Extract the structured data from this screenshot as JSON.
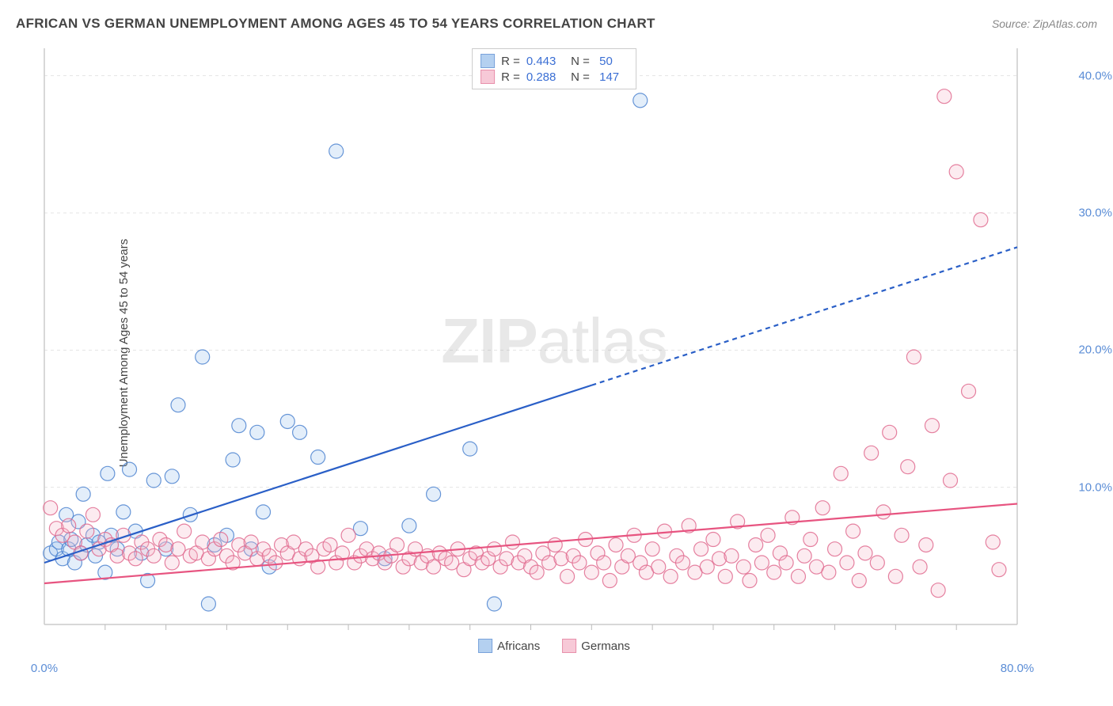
{
  "title": "AFRICAN VS GERMAN UNEMPLOYMENT AMONG AGES 45 TO 54 YEARS CORRELATION CHART",
  "source": "Source: ZipAtlas.com",
  "ylabel": "Unemployment Among Ages 45 to 54 years",
  "watermark": {
    "bold": "ZIP",
    "light": "atlas"
  },
  "chart": {
    "type": "scatter",
    "background_color": "#ffffff",
    "grid_color": "#e4e4e4",
    "grid_dash": "4,4",
    "axis_color": "#cccccc",
    "tick_color": "#bbbbbb",
    "xlim": [
      0,
      80
    ],
    "ylim": [
      0,
      42
    ],
    "x_ticks_minor": [
      5,
      10,
      15,
      20,
      25,
      30,
      35,
      40,
      45,
      50,
      55,
      60,
      65,
      70,
      75
    ],
    "y_gridlines": [
      10,
      20,
      30,
      40
    ],
    "x_labels": [
      {
        "value": 0,
        "text": "0.0%"
      },
      {
        "value": 80,
        "text": "80.0%"
      }
    ],
    "y_labels": [
      {
        "value": 10,
        "text": "10.0%"
      },
      {
        "value": 20,
        "text": "20.0%"
      },
      {
        "value": 30,
        "text": "30.0%"
      },
      {
        "value": 40,
        "text": "40.0%"
      }
    ],
    "marker_radius": 9,
    "marker_stroke_width": 1.2,
    "marker_fill_opacity": 0.28,
    "trend_line_width": 2.2,
    "series": [
      {
        "name": "Africans",
        "color_fill": "#9cc1ec",
        "color_stroke": "#4d84d0",
        "trend_color": "#2a5fc7",
        "R": "0.443",
        "N": "50",
        "trend": {
          "x1": 0,
          "y1": 4.5,
          "x2": 80,
          "y2": 27.5,
          "solid_until_x": 45
        },
        "points": [
          [
            0.5,
            5.2
          ],
          [
            1,
            5.5
          ],
          [
            1.2,
            6
          ],
          [
            1.5,
            4.8
          ],
          [
            1.8,
            8
          ],
          [
            2,
            5.5
          ],
          [
            2.2,
            6.2
          ],
          [
            2.5,
            4.5
          ],
          [
            2.8,
            7.5
          ],
          [
            3,
            5.2
          ],
          [
            3.2,
            9.5
          ],
          [
            3.5,
            5.8
          ],
          [
            4,
            6.5
          ],
          [
            4.2,
            5
          ],
          [
            4.5,
            6
          ],
          [
            5,
            3.8
          ],
          [
            5.2,
            11
          ],
          [
            5.5,
            6.5
          ],
          [
            6,
            5.5
          ],
          [
            6.5,
            8.2
          ],
          [
            7,
            11.3
          ],
          [
            7.5,
            6.8
          ],
          [
            8,
            5.2
          ],
          [
            8.5,
            3.2
          ],
          [
            9,
            10.5
          ],
          [
            10,
            5.5
          ],
          [
            10.5,
            10.8
          ],
          [
            11,
            16
          ],
          [
            12,
            8
          ],
          [
            13,
            19.5
          ],
          [
            13.5,
            1.5
          ],
          [
            14,
            5.8
          ],
          [
            15,
            6.5
          ],
          [
            15.5,
            12
          ],
          [
            16,
            14.5
          ],
          [
            17,
            5.5
          ],
          [
            17.5,
            14
          ],
          [
            18,
            8.2
          ],
          [
            18.5,
            4.2
          ],
          [
            20,
            14.8
          ],
          [
            21,
            14
          ],
          [
            22.5,
            12.2
          ],
          [
            24,
            34.5
          ],
          [
            26,
            7
          ],
          [
            28,
            4.8
          ],
          [
            30,
            7.2
          ],
          [
            32,
            9.5
          ],
          [
            35,
            12.8
          ],
          [
            37,
            1.5
          ],
          [
            49,
            38.2
          ]
        ]
      },
      {
        "name": "Germans",
        "color_fill": "#f5b8ca",
        "color_stroke": "#e16b8f",
        "trend_color": "#e75480",
        "R": "0.288",
        "N": "147",
        "trend": {
          "x1": 0,
          "y1": 3,
          "x2": 80,
          "y2": 8.8,
          "solid_until_x": 80
        },
        "points": [
          [
            0.5,
            8.5
          ],
          [
            1,
            7
          ],
          [
            1.5,
            6.5
          ],
          [
            2,
            7.2
          ],
          [
            2.5,
            6
          ],
          [
            3,
            5.2
          ],
          [
            3.5,
            6.8
          ],
          [
            4,
            8
          ],
          [
            4.5,
            5.5
          ],
          [
            5,
            6.2
          ],
          [
            5.5,
            5.8
          ],
          [
            6,
            5
          ],
          [
            6.5,
            6.5
          ],
          [
            7,
            5.2
          ],
          [
            7.5,
            4.8
          ],
          [
            8,
            6
          ],
          [
            8.5,
            5.5
          ],
          [
            9,
            5
          ],
          [
            9.5,
            6.2
          ],
          [
            10,
            5.8
          ],
          [
            10.5,
            4.5
          ],
          [
            11,
            5.5
          ],
          [
            11.5,
            6.8
          ],
          [
            12,
            5
          ],
          [
            12.5,
            5.2
          ],
          [
            13,
            6
          ],
          [
            13.5,
            4.8
          ],
          [
            14,
            5.5
          ],
          [
            14.5,
            6.2
          ],
          [
            15,
            5
          ],
          [
            15.5,
            4.5
          ],
          [
            16,
            5.8
          ],
          [
            16.5,
            5.2
          ],
          [
            17,
            6
          ],
          [
            17.5,
            4.8
          ],
          [
            18,
            5.5
          ],
          [
            18.5,
            5
          ],
          [
            19,
            4.5
          ],
          [
            19.5,
            5.8
          ],
          [
            20,
            5.2
          ],
          [
            20.5,
            6
          ],
          [
            21,
            4.8
          ],
          [
            21.5,
            5.5
          ],
          [
            22,
            5
          ],
          [
            22.5,
            4.2
          ],
          [
            23,
            5.5
          ],
          [
            23.5,
            5.8
          ],
          [
            24,
            4.5
          ],
          [
            24.5,
            5.2
          ],
          [
            25,
            6.5
          ],
          [
            25.5,
            4.5
          ],
          [
            26,
            5
          ],
          [
            26.5,
            5.5
          ],
          [
            27,
            4.8
          ],
          [
            27.5,
            5.2
          ],
          [
            28,
            4.5
          ],
          [
            28.5,
            5
          ],
          [
            29,
            5.8
          ],
          [
            29.5,
            4.2
          ],
          [
            30,
            4.8
          ],
          [
            30.5,
            5.5
          ],
          [
            31,
            4.5
          ],
          [
            31.5,
            5
          ],
          [
            32,
            4.2
          ],
          [
            32.5,
            5.2
          ],
          [
            33,
            4.8
          ],
          [
            33.5,
            4.5
          ],
          [
            34,
            5.5
          ],
          [
            34.5,
            4
          ],
          [
            35,
            4.8
          ],
          [
            35.5,
            5.2
          ],
          [
            36,
            4.5
          ],
          [
            36.5,
            4.8
          ],
          [
            37,
            5.5
          ],
          [
            37.5,
            4.2
          ],
          [
            38,
            4.8
          ],
          [
            38.5,
            6
          ],
          [
            39,
            4.5
          ],
          [
            39.5,
            5
          ],
          [
            40,
            4.2
          ],
          [
            40.5,
            3.8
          ],
          [
            41,
            5.2
          ],
          [
            41.5,
            4.5
          ],
          [
            42,
            5.8
          ],
          [
            42.5,
            4.8
          ],
          [
            43,
            3.5
          ],
          [
            43.5,
            5
          ],
          [
            44,
            4.5
          ],
          [
            44.5,
            6.2
          ],
          [
            45,
            3.8
          ],
          [
            45.5,
            5.2
          ],
          [
            46,
            4.5
          ],
          [
            46.5,
            3.2
          ],
          [
            47,
            5.8
          ],
          [
            47.5,
            4.2
          ],
          [
            48,
            5
          ],
          [
            48.5,
            6.5
          ],
          [
            49,
            4.5
          ],
          [
            49.5,
            3.8
          ],
          [
            50,
            5.5
          ],
          [
            50.5,
            4.2
          ],
          [
            51,
            6.8
          ],
          [
            51.5,
            3.5
          ],
          [
            52,
            5
          ],
          [
            52.5,
            4.5
          ],
          [
            53,
            7.2
          ],
          [
            53.5,
            3.8
          ],
          [
            54,
            5.5
          ],
          [
            54.5,
            4.2
          ],
          [
            55,
            6.2
          ],
          [
            55.5,
            4.8
          ],
          [
            56,
            3.5
          ],
          [
            56.5,
            5
          ],
          [
            57,
            7.5
          ],
          [
            57.5,
            4.2
          ],
          [
            58,
            3.2
          ],
          [
            58.5,
            5.8
          ],
          [
            59,
            4.5
          ],
          [
            59.5,
            6.5
          ],
          [
            60,
            3.8
          ],
          [
            60.5,
            5.2
          ],
          [
            61,
            4.5
          ],
          [
            61.5,
            7.8
          ],
          [
            62,
            3.5
          ],
          [
            62.5,
            5
          ],
          [
            63,
            6.2
          ],
          [
            63.5,
            4.2
          ],
          [
            64,
            8.5
          ],
          [
            64.5,
            3.8
          ],
          [
            65,
            5.5
          ],
          [
            65.5,
            11
          ],
          [
            66,
            4.5
          ],
          [
            66.5,
            6.8
          ],
          [
            67,
            3.2
          ],
          [
            67.5,
            5.2
          ],
          [
            68,
            12.5
          ],
          [
            68.5,
            4.5
          ],
          [
            69,
            8.2
          ],
          [
            69.5,
            14
          ],
          [
            70,
            3.5
          ],
          [
            70.5,
            6.5
          ],
          [
            71,
            11.5
          ],
          [
            71.5,
            19.5
          ],
          [
            72,
            4.2
          ],
          [
            72.5,
            5.8
          ],
          [
            73,
            14.5
          ],
          [
            73.5,
            2.5
          ],
          [
            74,
            38.5
          ],
          [
            74.5,
            10.5
          ],
          [
            75,
            33
          ],
          [
            76,
            17
          ],
          [
            77,
            29.5
          ],
          [
            78,
            6
          ],
          [
            78.5,
            4
          ]
        ]
      }
    ]
  },
  "bottom_legend": [
    {
      "label": "Africans",
      "fill": "#9cc1ec",
      "stroke": "#4d84d0"
    },
    {
      "label": "Germans",
      "fill": "#f5b8ca",
      "stroke": "#e16b8f"
    }
  ]
}
